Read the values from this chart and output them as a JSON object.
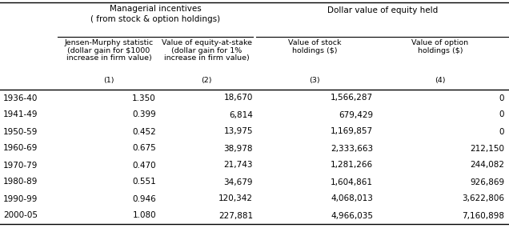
{
  "title_left": "Managerial incentives\n( from stock & option holdings)",
  "title_right": "Dollar value of equity held",
  "row_labels": [
    "1936-40",
    "1941-49",
    "1950-59",
    "1960-69",
    "1970-79",
    "1980-89",
    "1990-99",
    "2000-05"
  ],
  "col1": [
    "1.350",
    "0.399",
    "0.452",
    "0.675",
    "0.470",
    "0.551",
    "0.946",
    "1.080"
  ],
  "col2": [
    "18,670",
    "6,814",
    "13,975",
    "38,978",
    "21,743",
    "34,679",
    "120,342",
    "227,881"
  ],
  "col3": [
    "1,566,287",
    "679,429",
    "1,169,857",
    "2,333,663",
    "1,281,266",
    "1,604,861",
    "4,068,013",
    "4,966,035"
  ],
  "col4": [
    "0",
    "0",
    "0",
    "212,150",
    "244,082",
    "926,869",
    "3,622,806",
    "7,160,898"
  ],
  "bg_color": "#ffffff",
  "text_color": "#000000",
  "line_color": "#000000",
  "col_numbers": [
    "(1)",
    "(2)",
    "(3)",
    "(4)"
  ],
  "header1_lines": [
    "Jensen-Murphy statistic",
    "(dollar gain for $1000",
    "increase in firm value)"
  ],
  "header2_lines": [
    "Value of equity-at-stake",
    "(dollar gain for 1%",
    "increase in firm value)"
  ],
  "header3_lines": [
    "Value of stock",
    "holdings ($)"
  ],
  "header4_lines": [
    "Value of option",
    "holdings ($)"
  ]
}
